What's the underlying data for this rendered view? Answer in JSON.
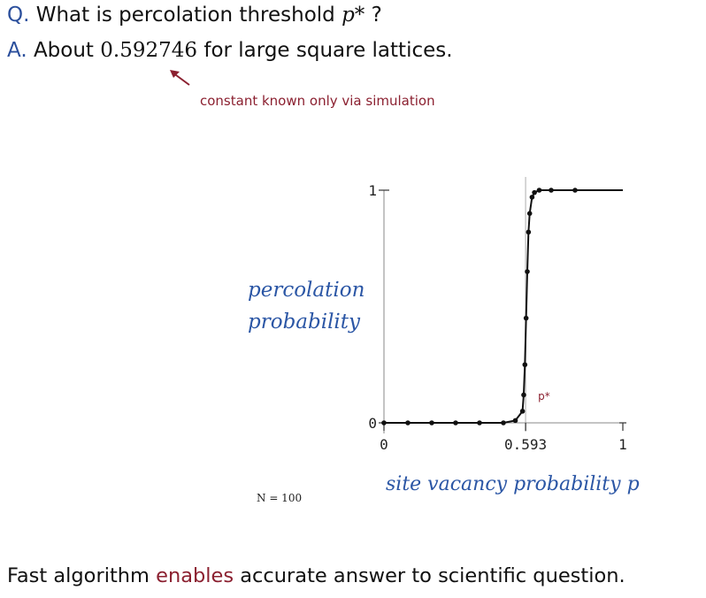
{
  "question": {
    "tag": "Q.",
    "text": "What is percolation threshold",
    "symbol": "p*",
    "end": "?"
  },
  "answer": {
    "tag": "A.",
    "prefix": "About",
    "value": "0.592746",
    "suffix": "for large square lattices."
  },
  "annotation": "constant known only via simulation",
  "note": "N = 100",
  "footer": {
    "part1": "Fast algorithm",
    "highlight": "enables",
    "part2": "accurate answer to scientific question."
  },
  "colors": {
    "accent": "#2b4f9c",
    "highlight": "#8b2030",
    "label_blue": "#2b56a5"
  },
  "chart_data": {
    "type": "line",
    "xlabel": "site vacancy probability p",
    "ylabel_lines": [
      "percolation",
      "probability"
    ],
    "threshold_label": "p*",
    "xlim": [
      0,
      1
    ],
    "ylim": [
      0,
      1
    ],
    "x_ticks": [
      "0",
      "0.593",
      "1"
    ],
    "y_ticks": [
      "0",
      "1"
    ],
    "threshold": 0.593,
    "series": [
      {
        "x": [
          0.0,
          0.1,
          0.2,
          0.3,
          0.4,
          0.5,
          0.55,
          0.58,
          0.585,
          0.59,
          0.595,
          0.6,
          0.605,
          0.61,
          0.62,
          0.63,
          0.65,
          0.7,
          0.8
        ],
        "y": [
          0.0,
          0.0,
          0.0,
          0.0,
          0.0,
          0.0,
          0.01,
          0.05,
          0.12,
          0.25,
          0.45,
          0.65,
          0.82,
          0.9,
          0.97,
          0.99,
          1.0,
          1.0,
          1.0
        ]
      }
    ]
  }
}
